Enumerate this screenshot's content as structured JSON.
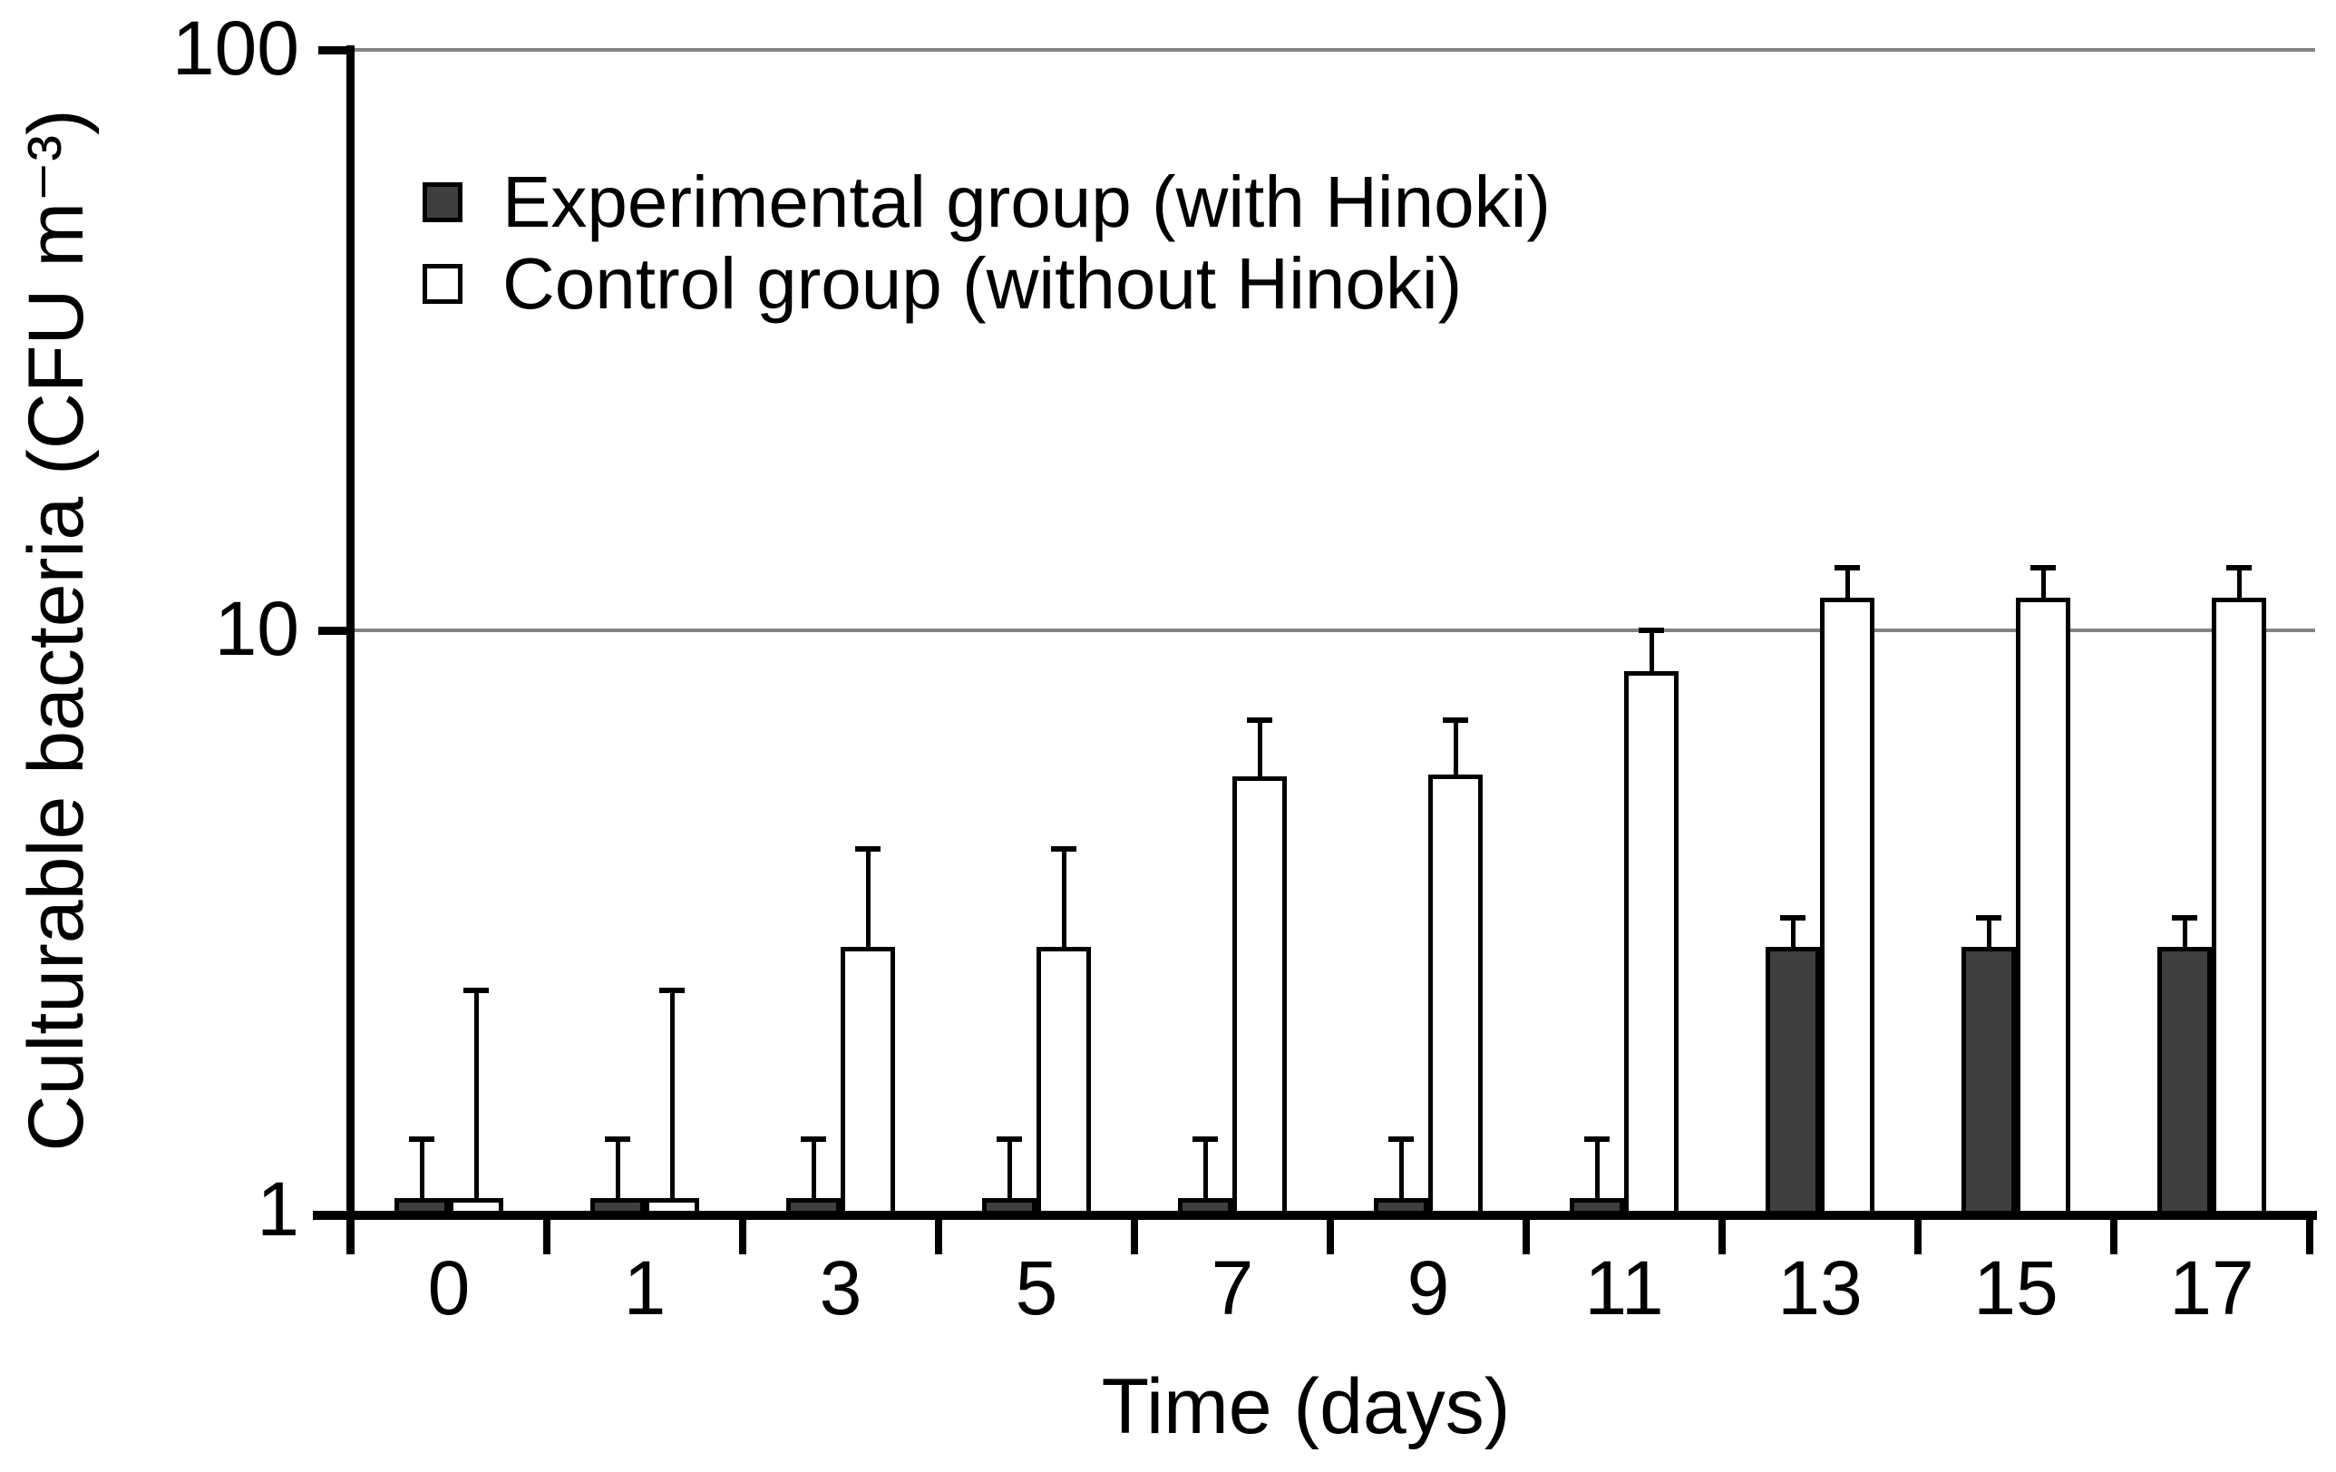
{
  "chart_data": {
    "type": "bar",
    "title": "",
    "xlabel": "Time (days)",
    "ylabel": "Culturable bacteria (CFU m⁻³)",
    "y_scale": "log",
    "ylim": [
      1,
      100
    ],
    "y_ticks": [
      "1",
      "10",
      "100"
    ],
    "gridlines_at": [
      10,
      100
    ],
    "grid_on": true,
    "grid_color": "#848484",
    "bar_border_color": "#000000",
    "legend_position": "top-left-inside",
    "categories": [
      "0",
      "1",
      "3",
      "5",
      "7",
      "9",
      "11",
      "13",
      "15",
      "17"
    ],
    "series": [
      {
        "name": "Experimental group (with Hinoki)",
        "fill": "#3f3f3f",
        "values": [
          1.05,
          1.05,
          1.05,
          1.05,
          1.05,
          1.05,
          1.05,
          2.85,
          2.85,
          2.85
        ],
        "error_top": [
          1.33,
          1.33,
          1.33,
          1.33,
          1.33,
          1.33,
          1.33,
          3.2,
          3.2,
          3.2
        ]
      },
      {
        "name": "Control group (without Hinoki)",
        "fill": "#ffffff",
        "values": [
          1.05,
          1.05,
          2.85,
          2.85,
          5.6,
          5.65,
          8.5,
          11.4,
          11.4,
          11.4
        ],
        "error_top": [
          2.4,
          2.4,
          4.2,
          4.2,
          7.0,
          7.0,
          10.0,
          12.8,
          12.8,
          12.8
        ]
      }
    ]
  }
}
